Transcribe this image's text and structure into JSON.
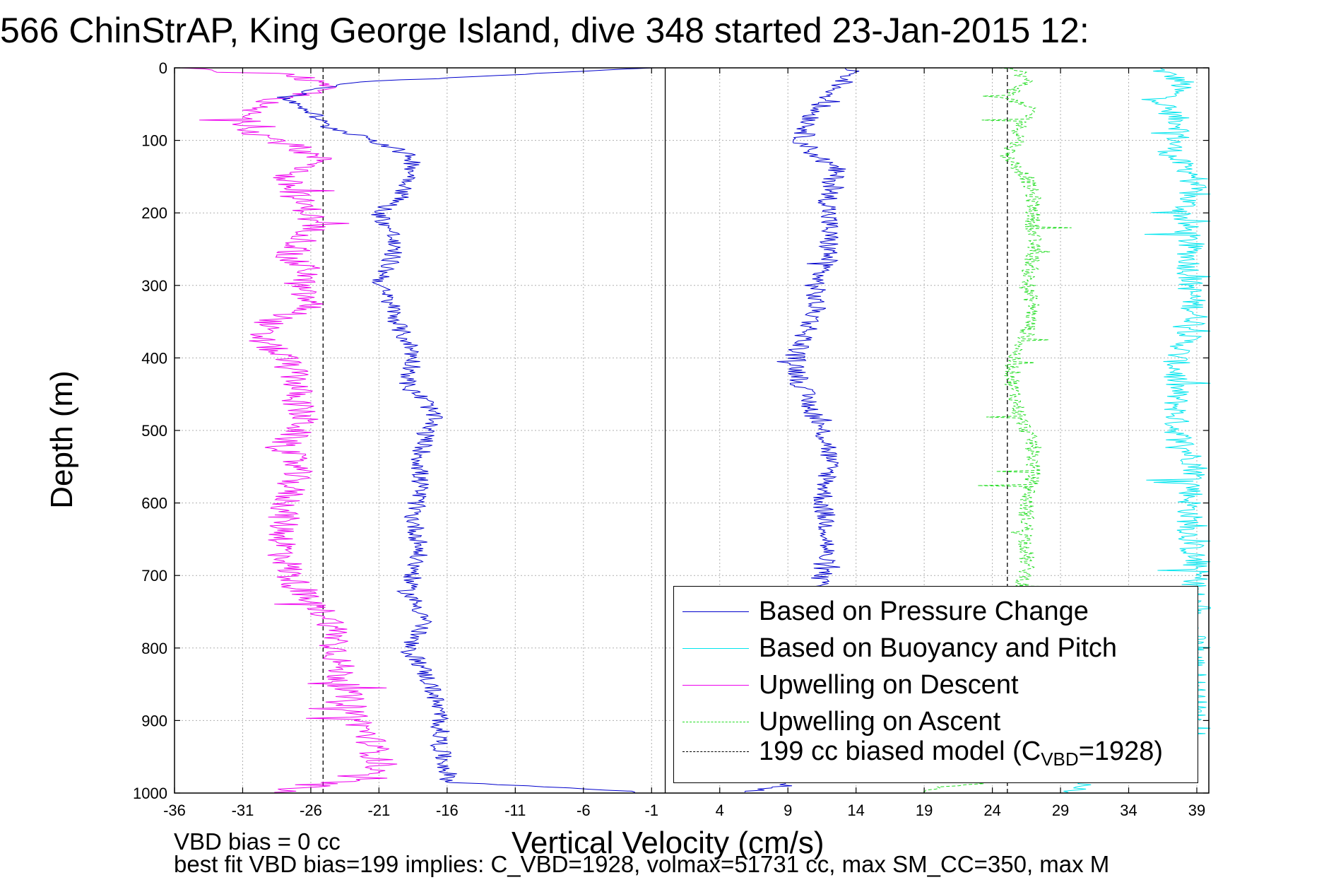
{
  "chart_data": {
    "type": "line",
    "title": "566 ChinStrAP, King George Island, dive 348 started 23-Jan-2015 12:",
    "xlabel": "Vertical Velocity (cm/s)",
    "ylabel": "Depth (m)",
    "xlim": [
      -36,
      40
    ],
    "ylim": [
      1000,
      0
    ],
    "y_reversed": true,
    "grid": true,
    "legend_position": "bottom-right",
    "x_ticks": [
      "-36",
      "-31",
      "-26",
      "-21",
      "-16",
      "-11",
      "-6",
      "-1",
      "4",
      "9",
      "14",
      "19",
      "24",
      "29",
      "34",
      "39"
    ],
    "y_ticks": [
      "0",
      "100",
      "200",
      "300",
      "400",
      "500",
      "600",
      "700",
      "800",
      "900",
      "1000"
    ],
    "reference_lines": [
      {
        "name": "zero",
        "x": 0,
        "color": "#000000",
        "style": "solid"
      },
      {
        "name": "model_descent",
        "x": -25.1,
        "color": "#000000",
        "style": "dashed"
      },
      {
        "name": "model_ascent",
        "x": 25.1,
        "color": "#000000",
        "style": "dashed"
      }
    ],
    "series": [
      {
        "name": "Based on Pressure Change",
        "color": "#0000cc",
        "style": "solid",
        "depth": [
          0,
          5,
          20,
          40,
          60,
          80,
          95,
          110,
          125,
          140,
          160,
          180,
          200,
          230,
          260,
          280,
          300,
          330,
          360,
          390,
          410,
          440,
          460,
          480,
          500,
          540,
          580,
          620,
          660,
          700,
          720,
          760,
          800,
          820,
          860,
          900,
          940,
          970,
          985,
          995,
          1000
        ],
        "values": [
          -0.5,
          -6,
          -23,
          -28,
          -26,
          -25,
          -22,
          -20,
          -18.5,
          -18.5,
          -18.8,
          -19.5,
          -21,
          -20,
          -20,
          -20.5,
          -21,
          -20,
          -19.5,
          -18.5,
          -18.5,
          -19,
          -17.5,
          -17,
          -17.5,
          -18,
          -18,
          -18.5,
          -18,
          -18.5,
          -19,
          -17.5,
          -19,
          -18,
          -17,
          -16.5,
          -16.5,
          -16,
          -15.8,
          -5,
          -1
        ],
        "ascent_depth": [
          1000,
          990,
          960,
          900,
          860,
          800,
          760,
          720,
          700,
          640,
          600,
          560,
          520,
          480,
          440,
          400,
          380,
          340,
          300,
          260,
          220,
          180,
          140,
          120,
          100,
          80,
          60,
          40,
          20,
          5,
          0
        ],
        "ascent_values": [
          5,
          9,
          11,
          10.5,
          11,
          11,
          11.5,
          11,
          11.5,
          12,
          11.5,
          12,
          12,
          11,
          10,
          9.5,
          10,
          11,
          11,
          12,
          12,
          12,
          12.5,
          11,
          10,
          10.5,
          11,
          12,
          13,
          14,
          13
        ]
      },
      {
        "name": "Based on Buoyancy and Pitch",
        "color": "#00e5ee",
        "style": "solid",
        "depth": [
          0,
          20,
          50,
          80,
          120,
          150,
          200,
          250,
          300,
          350,
          400,
          450,
          500,
          550,
          600,
          650,
          700,
          750,
          800,
          900,
          1000
        ],
        "values": [
          36,
          38,
          36.5,
          38,
          37,
          39,
          38,
          38.5,
          38.5,
          39,
          37.5,
          37.5,
          37.5,
          39,
          38.5,
          38.5,
          39,
          38.5,
          38.8,
          38.8,
          30
        ]
      },
      {
        "name": "Upwelling on Descent",
        "color": "#ee00ee",
        "style": "solid",
        "depth": [
          0,
          10,
          30,
          50,
          70,
          90,
          110,
          130,
          150,
          180,
          200,
          230,
          260,
          280,
          300,
          330,
          350,
          370,
          400,
          430,
          460,
          490,
          520,
          550,
          580,
          620,
          660,
          700,
          730,
          760,
          790,
          820,
          860,
          900,
          930,
          960,
          980,
          1000
        ],
        "values": [
          -36,
          -27,
          -25,
          -30,
          -31,
          -30,
          -27,
          -25,
          -28,
          -27,
          -26,
          -26,
          -28,
          -26,
          -27,
          -26,
          -29,
          -30,
          -28,
          -27,
          -27,
          -26.5,
          -28,
          -27,
          -27.5,
          -28,
          -28,
          -27.5,
          -26.5,
          -24.5,
          -24,
          -24,
          -23.5,
          -22.5,
          -21.5,
          -21,
          -22.5,
          -29
        ]
      },
      {
        "name": "Upwelling on Ascent",
        "color": "#22dd22",
        "style": "dashed",
        "depth": [
          1000,
          980,
          940,
          900,
          860,
          800,
          760,
          720,
          700,
          650,
          600,
          560,
          520,
          480,
          440,
          400,
          370,
          330,
          300,
          260,
          220,
          180,
          150,
          120,
          100,
          80,
          60,
          40,
          20,
          5,
          0
        ],
        "values": [
          18,
          24,
          26,
          26,
          25.5,
          25.5,
          25,
          26,
          26.5,
          26.5,
          26.5,
          27,
          27,
          26,
          25.5,
          25.5,
          26.5,
          27,
          26.5,
          27,
          27,
          27,
          26.5,
          25,
          26,
          26,
          27,
          25,
          26.5,
          26,
          25
        ]
      },
      {
        "name": "199 cc biased model (C",
        "subscript": "VBD",
        "suffix": "=1928)",
        "color": "#000000",
        "style": "dashed",
        "depth": [],
        "values": []
      }
    ],
    "annotations": [
      "VBD bias = 0 cc",
      "best fit VBD bias=199 implies: C_VBD=1928, volmax=51731 cc, max SM_CC=350, max M"
    ]
  }
}
